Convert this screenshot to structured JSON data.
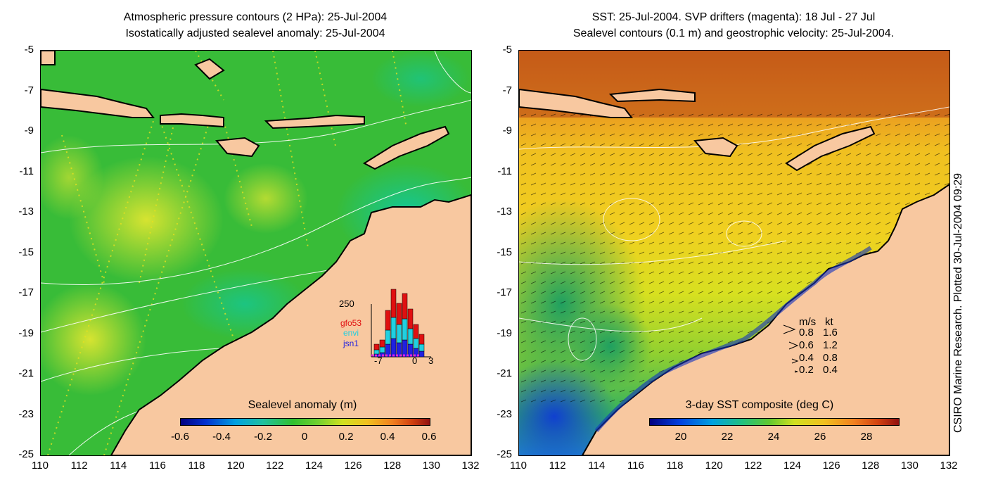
{
  "left": {
    "title_line1": "Atmospheric pressure contours (2 HPa): 25-Jul-2004",
    "title_line2": "Isostatically adjusted sealevel anomaly: 25-Jul-2004",
    "colorbar_label": "Sealevel anomaly (m)",
    "colorbar_ticks": [
      "-0.6",
      "-0.4",
      "-0.2",
      "0",
      "0.2",
      "0.4",
      "0.6"
    ],
    "inset": {
      "ymax_label": "250",
      "x_labels": [
        "-7",
        "0",
        "3"
      ],
      "legend": [
        {
          "name": "gfo53",
          "color": "#e01010"
        },
        {
          "name": "envi",
          "color": "#20d0e0"
        },
        {
          "name": "jsn1",
          "color": "#2020e0"
        }
      ]
    }
  },
  "right": {
    "title_line1": "SST: 25-Jul-2004. SVP drifters (magenta): 18 Jul - 27 Jul",
    "title_line2": "Sealevel contours (0.1 m) and geostrophic velocity: 25-Jul-2004.",
    "colorbar_label": "3-day SST composite (deg C)",
    "colorbar_ticks": [
      "20",
      "22",
      "24",
      "26",
      "28"
    ],
    "velocity_legend": {
      "header_ms": "m/s",
      "header_kt": "kt",
      "rows": [
        {
          "ms": "0.8",
          "kt": "1.6"
        },
        {
          "ms": "0.6",
          "kt": "1.2"
        },
        {
          "ms": "0.4",
          "kt": "0.8"
        },
        {
          "ms": "0.2",
          "kt": "0.4"
        }
      ]
    }
  },
  "y_ticks": [
    "-5",
    "-7",
    "-9",
    "-11",
    "-13",
    "-15",
    "-17",
    "-19",
    "-21",
    "-23",
    "-25"
  ],
  "x_ticks": [
    "110",
    "112",
    "114",
    "116",
    "118",
    "120",
    "122",
    "124",
    "126",
    "128",
    "130",
    "132"
  ],
  "credit": "CSIRO Marine Research. Plotted 30-Jul-2004 09:29",
  "colors": {
    "land": "#f8c8a0",
    "coast": "#000000",
    "magenta": "#e020e0"
  }
}
